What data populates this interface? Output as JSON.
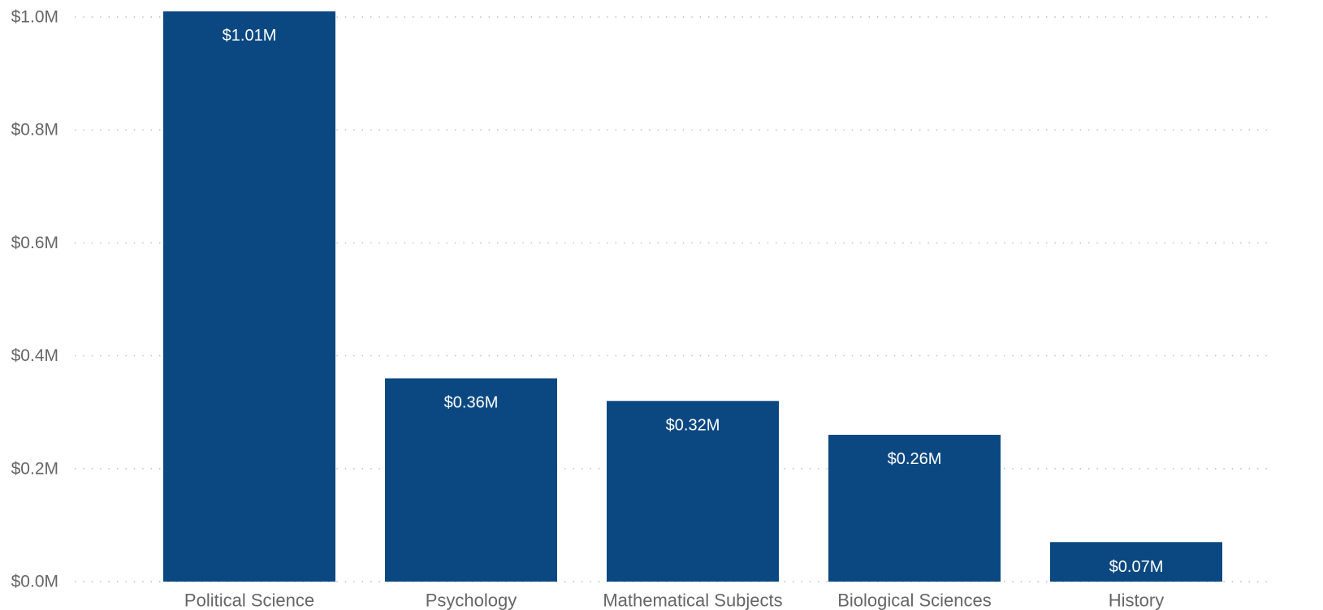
{
  "chart_data": {
    "type": "bar",
    "title": "",
    "xlabel": "",
    "ylabel": "",
    "categories": [
      "Political Science",
      "Psychology",
      "Mathematical Subjects",
      "Biological Sciences",
      "History"
    ],
    "values": [
      1.01,
      0.36,
      0.32,
      0.26,
      0.07
    ],
    "value_unit": "millions USD",
    "data_labels": [
      "$1.01M",
      "$0.36M",
      "$0.32M",
      "$0.26M",
      "$0.07M"
    ],
    "ylim": [
      0,
      1.0
    ],
    "y_ticks": [
      0.0,
      0.2,
      0.4,
      0.6,
      0.8,
      1.0
    ],
    "y_tick_labels": [
      "$0.0M",
      "$0.2M",
      "$0.4M",
      "$0.6M",
      "$0.8M",
      "$1.0M"
    ],
    "grid": true,
    "legend": "none",
    "colors": {
      "bar": "#0B4881",
      "data_label": "#FFFFFF",
      "tick_label": "#666666",
      "gridline": "#B9B9B9"
    }
  }
}
